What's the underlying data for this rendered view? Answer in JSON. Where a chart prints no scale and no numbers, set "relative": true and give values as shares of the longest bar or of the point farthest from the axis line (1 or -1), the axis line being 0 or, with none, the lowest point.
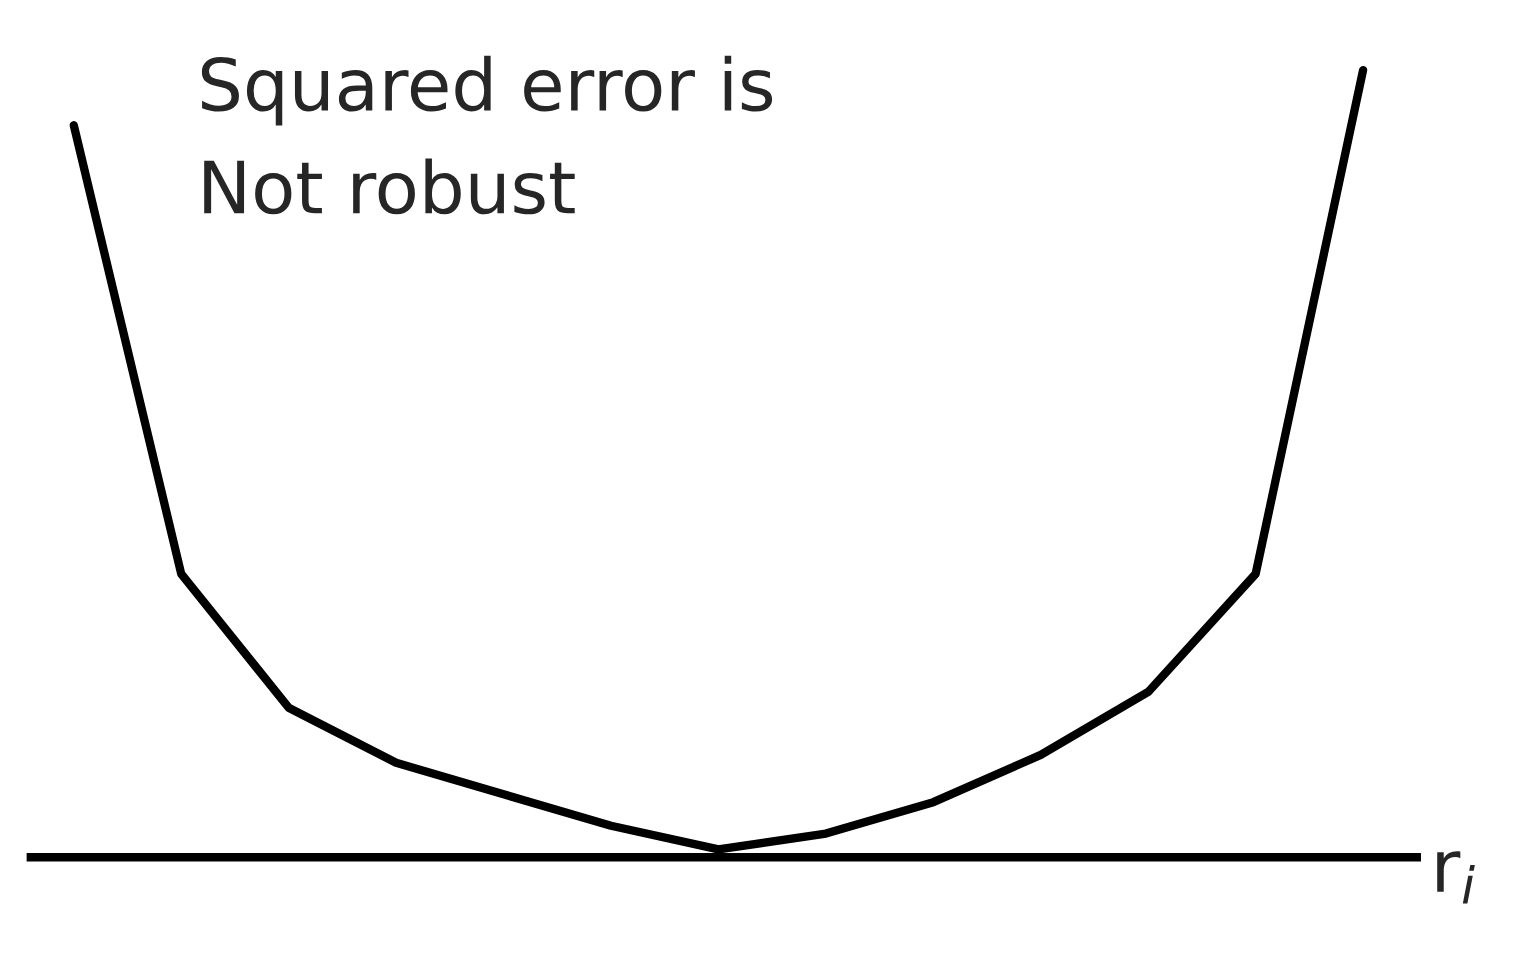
{
  "chart_data": {
    "type": "line",
    "title": "Squared error is\nNot robust",
    "xlabel": "r$_{i}$",
    "relative": true,
    "categories": [
      null,
      null,
      null,
      null,
      null,
      null,
      null,
      null,
      null,
      null,
      null,
      null,
      null
    ],
    "series": [
      {
        "color": "#000000",
        "values": [
          0.93,
          0.36,
          0.19,
          0.12,
          0.08,
          0.04,
          0.01,
          0.03,
          0.07,
          0.13,
          0.21,
          0.36,
          1
        ]
      }
    ],
    "grid": false,
    "legend": false
  }
}
